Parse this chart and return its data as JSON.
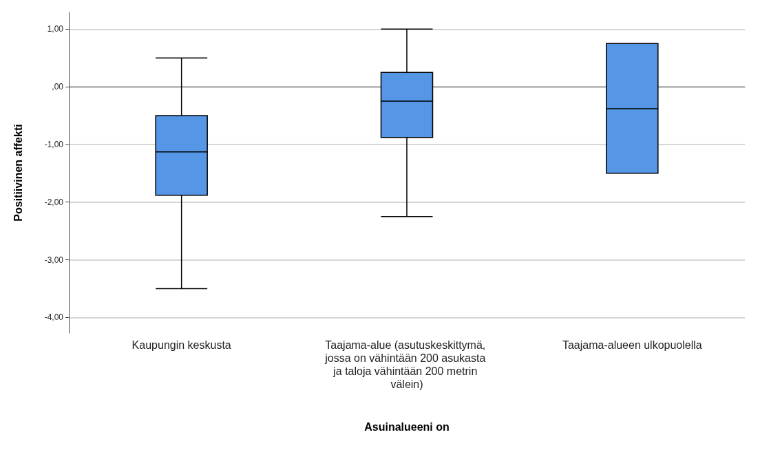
{
  "chart_data": {
    "type": "box",
    "xlabel": "Asuinalueeni on",
    "ylabel": "Positiivinen affekti",
    "categories": [
      "Kaupungin keskusta",
      "Taajama-alue (asutuskeskittymä, jossa on vähintään 200 asukasta ja taloja vähintään 200 metrin välein)",
      "Taajama-alueen ulkopuolella"
    ],
    "boxes": [
      {
        "low": -3.5,
        "q1": -1.88,
        "median": -1.13,
        "q3": -0.5,
        "high": 0.5
      },
      {
        "low": -2.25,
        "q1": -0.88,
        "median": -0.25,
        "q3": 0.25,
        "high": 1.0
      },
      {
        "low": -1.5,
        "q1": -1.5,
        "median": -0.38,
        "q3": 0.75,
        "high": 0.75
      }
    ],
    "color": "#5596e6",
    "ylim": [
      -4.27,
      1.29
    ],
    "yticks": [
      {
        "value": -4,
        "label": "-4,00"
      },
      {
        "value": -3,
        "label": "-3,00"
      },
      {
        "value": -2,
        "label": "-2,00"
      },
      {
        "value": -1,
        "label": "-1,00"
      },
      {
        "value": 0,
        "label": ",00"
      },
      {
        "value": 1,
        "label": "1,00"
      }
    ],
    "grid": "y"
  }
}
